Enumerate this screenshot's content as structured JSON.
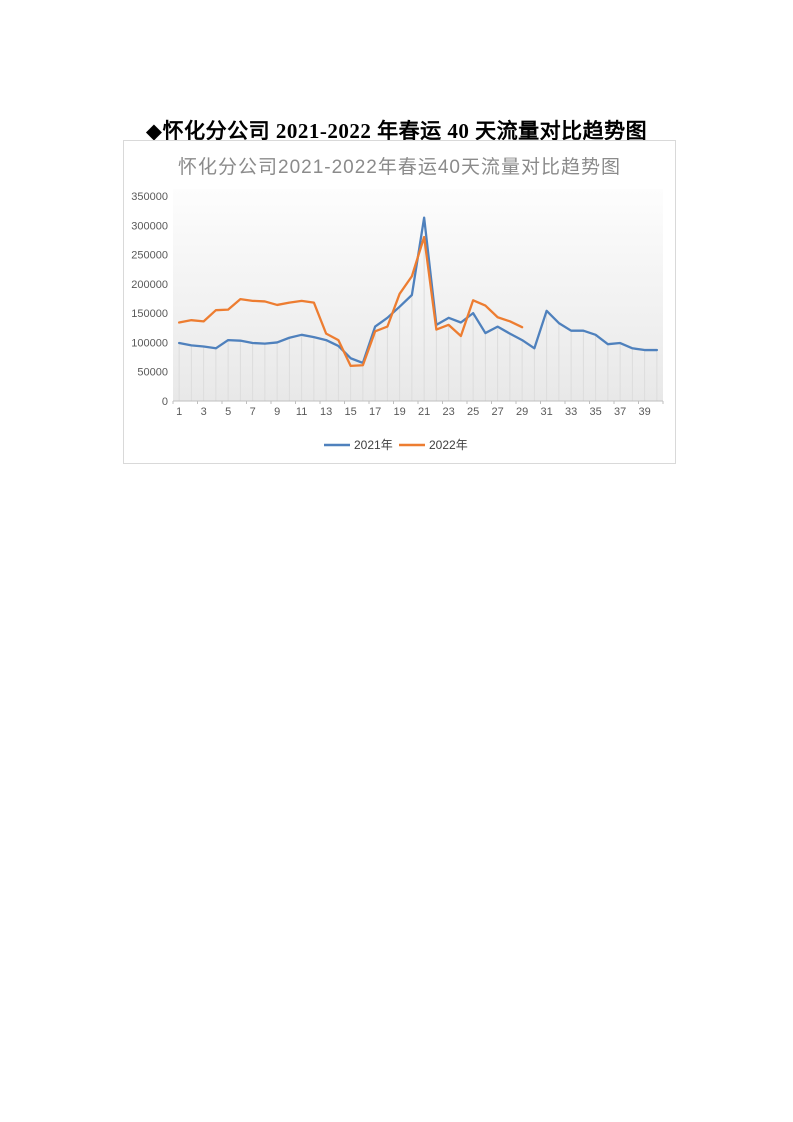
{
  "document": {
    "title": "◆怀化分公司 2021-2022 年春运 40 天流量对比趋势图"
  },
  "chart_data": {
    "type": "line",
    "title": "怀化分公司2021-2022年春运40天流量对比趋势图",
    "xlabel": "",
    "ylabel": "",
    "x": [
      1,
      2,
      3,
      4,
      5,
      6,
      7,
      8,
      9,
      10,
      11,
      12,
      13,
      14,
      15,
      16,
      17,
      18,
      19,
      20,
      21,
      22,
      23,
      24,
      25,
      26,
      27,
      28,
      29,
      30,
      31,
      32,
      33,
      34,
      35,
      36,
      37,
      38,
      39,
      40
    ],
    "series": [
      {
        "name": "2021年",
        "color": "#4f81bd",
        "values": [
          99000,
          95000,
          93000,
          90000,
          104000,
          103000,
          99000,
          98000,
          100000,
          108000,
          113000,
          109000,
          104000,
          94000,
          73000,
          65000,
          127000,
          142000,
          161000,
          181000,
          313000,
          130000,
          142000,
          134000,
          150000,
          116000,
          127000,
          115000,
          104000,
          90000,
          154000,
          133000,
          120000,
          120000,
          113000,
          97000,
          99000,
          90000,
          87000,
          87000
        ]
      },
      {
        "name": "2022年",
        "color": "#ed7d31",
        "values": [
          134000,
          138000,
          136000,
          155000,
          156000,
          174000,
          171000,
          170000,
          164000,
          168000,
          171000,
          168000,
          115000,
          104000,
          60000,
          61000,
          119000,
          127000,
          183000,
          213000,
          280000,
          122000,
          130000,
          111000,
          172000,
          163000,
          143000,
          136000,
          126000
        ]
      }
    ],
    "ylim": [
      0,
      350000
    ],
    "ytick_step": 50000,
    "xtick_labels": [
      1,
      3,
      5,
      7,
      9,
      11,
      13,
      15,
      17,
      19,
      21,
      23,
      25,
      27,
      29,
      31,
      33,
      35,
      37,
      39
    ],
    "legend_position": "bottom",
    "grid": "vertical droplines from axis to lower series, no horizontal gridlines",
    "plot_colors": {
      "dropline": "#dcdcdc",
      "axis_line": "#bfbfbf",
      "tick_label": "#595959",
      "title": "#8b8b8b",
      "plot_bg_bottom": "#e8e8e8",
      "plot_bg_top": "#fdfdfd"
    }
  }
}
